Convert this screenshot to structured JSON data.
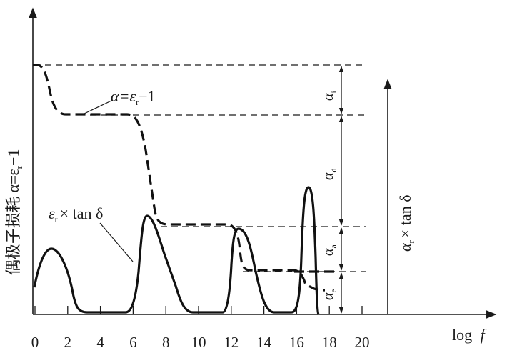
{
  "chart_data": {
    "type": "line",
    "x_ticks": [
      "0",
      "2",
      "4",
      "6",
      "8",
      "10",
      "12",
      "14",
      "16",
      "18",
      "20"
    ],
    "x_label_prefix": "log",
    "x_label_var": "f",
    "y_label_left": "偶极子损耗 α=ε",
    "y_label_left_sub": "r",
    "y_label_left_tail": "−1",
    "y_label_right_prefix": "α",
    "y_label_right_sub": "r",
    "y_label_right_tail": "× tan δ",
    "series": [
      {
        "label_parts": {
          "greek": "α",
          "eq": "=ε",
          "sub": "r",
          "tail": "−1"
        },
        "style": "dashed",
        "levels": [
          {
            "x_from": 0,
            "x_to": 6,
            "level": "α_e+α_a+α_d+α_i"
          },
          {
            "x_from": 6,
            "x_to": 12,
            "level": "α_e+α_a+α_d"
          },
          {
            "x_from": 12,
            "x_to": 16,
            "level": "α_e+α_a"
          },
          {
            "x_from": 16,
            "x_to": 18,
            "level": "α_e"
          }
        ]
      },
      {
        "label_parts": {
          "eps": "ε",
          "sub": "r",
          "tail": "× tan δ"
        },
        "style": "solid",
        "peaks_x": [
          1,
          6.8,
          12.5,
          16.8
        ]
      }
    ],
    "dimensions": [
      {
        "symbol": "α",
        "sub": "i"
      },
      {
        "symbol": "α",
        "sub": "d"
      },
      {
        "symbol": "α",
        "sub": "a"
      },
      {
        "symbol": "α",
        "sub": "e"
      }
    ]
  }
}
